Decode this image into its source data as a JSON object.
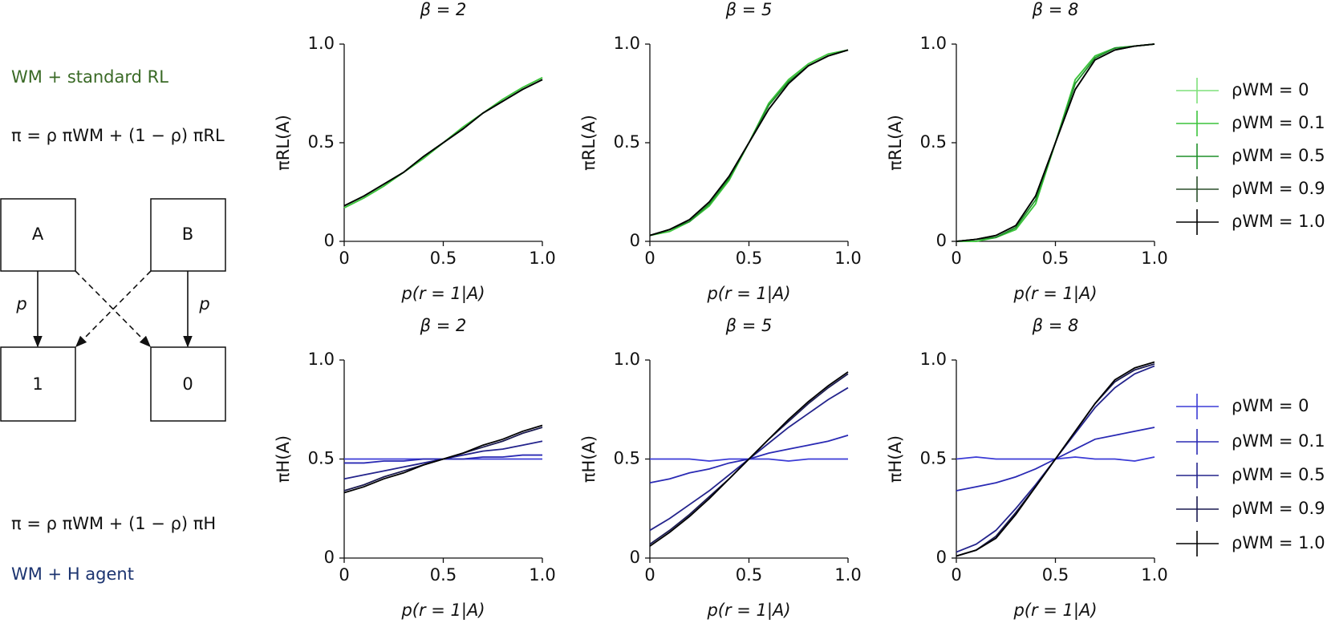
{
  "diagram": {
    "top_label": "WM + standard RL",
    "top_formula": "π = ρ πWM + (1 − ρ) πRL",
    "nodes": [
      {
        "label": "A"
      },
      {
        "label": "B"
      },
      {
        "label": "1"
      },
      {
        "label": "0"
      }
    ],
    "edge_labels": [
      "p",
      "p"
    ],
    "bottom_formula": "π = ρ πWM + (1 − ρ) πH",
    "bottom_label": "WM + H agent"
  },
  "chart_data": [
    {
      "type": "line",
      "title": "β = 2",
      "xlabel": "p(r = 1|A)",
      "ylabel": "πRL(A)",
      "x": [
        0,
        0.1,
        0.2,
        0.3,
        0.4,
        0.5,
        0.6,
        0.7,
        0.8,
        0.9,
        1
      ],
      "xlim": [
        0,
        1
      ],
      "ylim": [
        0,
        1
      ],
      "xticks": [
        0,
        0.5,
        {
          "value": 1,
          "label": "1.0"
        }
      ],
      "yticks": [
        0,
        0.5,
        {
          "value": 1,
          "label": "1.0"
        }
      ],
      "series": [
        {
          "name": "ρWM = 0",
          "color": "#7fe07a",
          "values": [
            0.17,
            0.22,
            0.28,
            0.35,
            0.42,
            0.5,
            0.58,
            0.65,
            0.72,
            0.78,
            0.83
          ]
        },
        {
          "name": "ρWM = 0.1",
          "color": "#3cc43c",
          "values": [
            0.17,
            0.22,
            0.28,
            0.35,
            0.42,
            0.5,
            0.58,
            0.65,
            0.72,
            0.78,
            0.83
          ]
        },
        {
          "name": "ρWM = 0.5",
          "color": "#1f8f2a",
          "values": [
            0.18,
            0.23,
            0.29,
            0.35,
            0.43,
            0.5,
            0.57,
            0.65,
            0.71,
            0.77,
            0.82
          ]
        },
        {
          "name": "ρWM = 0.9",
          "color": "#2c4f2c",
          "values": [
            0.18,
            0.23,
            0.29,
            0.35,
            0.43,
            0.5,
            0.57,
            0.65,
            0.71,
            0.77,
            0.82
          ]
        },
        {
          "name": "ρWM = 1.0",
          "color": "#000000",
          "values": [
            0.18,
            0.23,
            0.29,
            0.35,
            0.43,
            0.5,
            0.57,
            0.65,
            0.71,
            0.77,
            0.82
          ]
        }
      ]
    },
    {
      "type": "line",
      "title": "β = 5",
      "xlabel": "p(r = 1|A)",
      "ylabel": "πRL(A)",
      "x": [
        0,
        0.1,
        0.2,
        0.3,
        0.4,
        0.5,
        0.6,
        0.7,
        0.8,
        0.9,
        1
      ],
      "xlim": [
        0,
        1
      ],
      "ylim": [
        0,
        1
      ],
      "xticks": [
        0,
        0.5,
        {
          "value": 1,
          "label": "1.0"
        }
      ],
      "yticks": [
        0,
        0.5,
        {
          "value": 1,
          "label": "1.0"
        }
      ],
      "series": [
        {
          "name": "ρWM = 0",
          "color": "#7fe07a",
          "values": [
            0.03,
            0.05,
            0.1,
            0.18,
            0.31,
            0.5,
            0.7,
            0.82,
            0.9,
            0.95,
            0.97
          ]
        },
        {
          "name": "ρWM = 0.1",
          "color": "#3cc43c",
          "values": [
            0.03,
            0.05,
            0.1,
            0.18,
            0.31,
            0.5,
            0.7,
            0.82,
            0.9,
            0.95,
            0.97
          ]
        },
        {
          "name": "ρWM = 0.5",
          "color": "#1f8f2a",
          "values": [
            0.03,
            0.06,
            0.1,
            0.19,
            0.32,
            0.5,
            0.69,
            0.81,
            0.89,
            0.94,
            0.97
          ]
        },
        {
          "name": "ρWM = 0.9",
          "color": "#2c4f2c",
          "values": [
            0.03,
            0.06,
            0.11,
            0.2,
            0.33,
            0.5,
            0.67,
            0.8,
            0.89,
            0.94,
            0.97
          ]
        },
        {
          "name": "ρWM = 1.0",
          "color": "#000000",
          "values": [
            0.03,
            0.06,
            0.11,
            0.2,
            0.33,
            0.5,
            0.67,
            0.8,
            0.89,
            0.94,
            0.97
          ]
        }
      ]
    },
    {
      "type": "line",
      "title": "β = 8",
      "xlabel": "p(r = 1|A)",
      "ylabel": "πRL(A)",
      "legend": "right",
      "x": [
        0,
        0.1,
        0.2,
        0.3,
        0.4,
        0.5,
        0.6,
        0.7,
        0.8,
        0.9,
        1
      ],
      "xlim": [
        0,
        1
      ],
      "ylim": [
        0,
        1
      ],
      "xticks": [
        0,
        0.5,
        {
          "value": 1,
          "label": "1.0"
        }
      ],
      "yticks": [
        0,
        0.5,
        {
          "value": 1,
          "label": "1.0"
        }
      ],
      "series": [
        {
          "name": "ρWM = 0",
          "color": "#7fe07a",
          "values": [
            0.0,
            0.0,
            0.02,
            0.06,
            0.19,
            0.5,
            0.82,
            0.94,
            0.98,
            0.99,
            1.0
          ]
        },
        {
          "name": "ρWM = 0.1",
          "color": "#3cc43c",
          "values": [
            0.0,
            0.0,
            0.02,
            0.06,
            0.19,
            0.5,
            0.82,
            0.94,
            0.98,
            0.99,
            1.0
          ]
        },
        {
          "name": "ρWM = 0.5",
          "color": "#1f8f2a",
          "values": [
            0.0,
            0.01,
            0.02,
            0.07,
            0.21,
            0.5,
            0.8,
            0.93,
            0.98,
            0.99,
            1.0
          ]
        },
        {
          "name": "ρWM = 0.9",
          "color": "#2c4f2c",
          "values": [
            0.0,
            0.01,
            0.03,
            0.08,
            0.23,
            0.5,
            0.77,
            0.92,
            0.97,
            0.99,
            1.0
          ]
        },
        {
          "name": "ρWM = 1.0",
          "color": "#000000",
          "values": [
            0.0,
            0.01,
            0.03,
            0.08,
            0.23,
            0.5,
            0.77,
            0.92,
            0.97,
            0.99,
            1.0
          ]
        }
      ]
    },
    {
      "type": "line",
      "title": "β = 2",
      "xlabel": "p(r = 1|A)",
      "ylabel": "πH(A)",
      "x": [
        0,
        0.1,
        0.2,
        0.3,
        0.4,
        0.5,
        0.6,
        0.7,
        0.8,
        0.9,
        1
      ],
      "xlim": [
        0,
        1
      ],
      "ylim": [
        0,
        1
      ],
      "xticks": [
        0,
        0.5,
        {
          "value": 1,
          "label": "1.0"
        }
      ],
      "yticks": [
        0,
        0.5,
        {
          "value": 1,
          "label": "1.0"
        }
      ],
      "series": [
        {
          "name": "ρWM = 0",
          "color": "#3b3bd6",
          "values": [
            0.5,
            0.5,
            0.5,
            0.5,
            0.5,
            0.5,
            0.5,
            0.5,
            0.5,
            0.5,
            0.5
          ]
        },
        {
          "name": "ρWM = 0.1",
          "color": "#2a2ab4",
          "values": [
            0.48,
            0.48,
            0.49,
            0.49,
            0.5,
            0.5,
            0.5,
            0.51,
            0.51,
            0.52,
            0.52
          ]
        },
        {
          "name": "ρWM = 0.5",
          "color": "#24248c",
          "values": [
            0.4,
            0.42,
            0.44,
            0.46,
            0.48,
            0.5,
            0.52,
            0.54,
            0.55,
            0.57,
            0.59
          ]
        },
        {
          "name": "ρWM = 0.9",
          "color": "#1a1a50",
          "values": [
            0.34,
            0.37,
            0.41,
            0.44,
            0.47,
            0.5,
            0.53,
            0.56,
            0.59,
            0.63,
            0.66
          ]
        },
        {
          "name": "ρWM = 1.0",
          "color": "#000000",
          "values": [
            0.33,
            0.36,
            0.4,
            0.43,
            0.47,
            0.5,
            0.53,
            0.57,
            0.6,
            0.64,
            0.67
          ]
        }
      ]
    },
    {
      "type": "line",
      "title": "β = 5",
      "xlabel": "p(r = 1|A)",
      "ylabel": "πH(A)",
      "x": [
        0,
        0.1,
        0.2,
        0.3,
        0.4,
        0.5,
        0.6,
        0.7,
        0.8,
        0.9,
        1
      ],
      "xlim": [
        0,
        1
      ],
      "ylim": [
        0,
        1
      ],
      "xticks": [
        0,
        0.5,
        {
          "value": 1,
          "label": "1.0"
        }
      ],
      "yticks": [
        0,
        0.5,
        {
          "value": 1,
          "label": "1.0"
        }
      ],
      "series": [
        {
          "name": "ρWM = 0",
          "color": "#3b3bd6",
          "values": [
            0.5,
            0.5,
            0.5,
            0.49,
            0.5,
            0.5,
            0.5,
            0.49,
            0.5,
            0.5,
            0.5
          ]
        },
        {
          "name": "ρWM = 0.1",
          "color": "#2a2ab4",
          "values": [
            0.38,
            0.4,
            0.43,
            0.45,
            0.48,
            0.5,
            0.53,
            0.55,
            0.57,
            0.59,
            0.62
          ]
        },
        {
          "name": "ρWM = 0.5",
          "color": "#24248c",
          "values": [
            0.14,
            0.2,
            0.27,
            0.34,
            0.42,
            0.5,
            0.58,
            0.66,
            0.73,
            0.8,
            0.86
          ]
        },
        {
          "name": "ρWM = 0.9",
          "color": "#1a1a50",
          "values": [
            0.07,
            0.14,
            0.22,
            0.31,
            0.4,
            0.5,
            0.6,
            0.69,
            0.78,
            0.86,
            0.93
          ]
        },
        {
          "name": "ρWM = 1.0",
          "color": "#000000",
          "values": [
            0.06,
            0.13,
            0.21,
            0.3,
            0.4,
            0.5,
            0.6,
            0.7,
            0.79,
            0.87,
            0.94
          ]
        }
      ]
    },
    {
      "type": "line",
      "title": "β = 8",
      "xlabel": "p(r = 1|A)",
      "ylabel": "πH(A)",
      "legend": "right",
      "x": [
        0,
        0.1,
        0.2,
        0.3,
        0.4,
        0.5,
        0.6,
        0.7,
        0.8,
        0.9,
        1
      ],
      "xlim": [
        0,
        1
      ],
      "ylim": [
        0,
        1
      ],
      "xticks": [
        0,
        0.5,
        {
          "value": 1,
          "label": "1.0"
        }
      ],
      "yticks": [
        0,
        0.5,
        {
          "value": 1,
          "label": "1.0"
        }
      ],
      "series": [
        {
          "name": "ρWM = 0",
          "color": "#3b3bd6",
          "values": [
            0.5,
            0.51,
            0.5,
            0.5,
            0.5,
            0.5,
            0.51,
            0.5,
            0.5,
            0.49,
            0.51
          ]
        },
        {
          "name": "ρWM = 0.1",
          "color": "#2a2ab4",
          "values": [
            0.34,
            0.36,
            0.38,
            0.41,
            0.45,
            0.5,
            0.55,
            0.6,
            0.62,
            0.64,
            0.66
          ]
        },
        {
          "name": "ρWM = 0.5",
          "color": "#24248c",
          "values": [
            0.03,
            0.07,
            0.14,
            0.25,
            0.37,
            0.5,
            0.63,
            0.76,
            0.86,
            0.93,
            0.97
          ]
        },
        {
          "name": "ρWM = 0.9",
          "color": "#1a1a50",
          "values": [
            0.01,
            0.04,
            0.11,
            0.23,
            0.36,
            0.5,
            0.64,
            0.78,
            0.89,
            0.95,
            0.98
          ]
        },
        {
          "name": "ρWM = 1.0",
          "color": "#000000",
          "values": [
            0.01,
            0.04,
            0.1,
            0.22,
            0.36,
            0.5,
            0.64,
            0.78,
            0.9,
            0.96,
            0.99
          ]
        }
      ]
    }
  ]
}
